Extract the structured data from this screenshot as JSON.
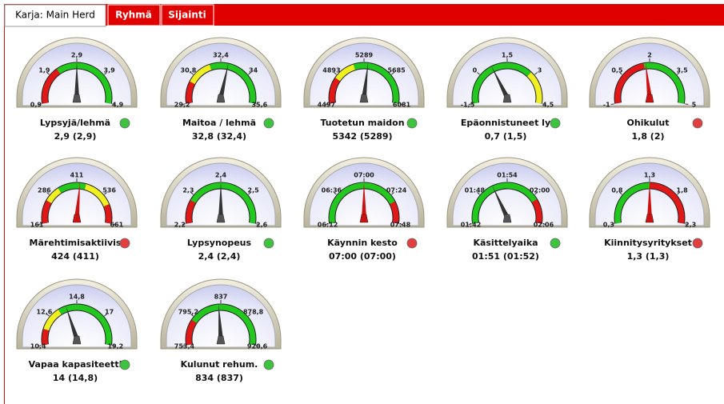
{
  "tabs": [
    "Karja: Main Herd",
    "Ryhmä",
    "Sijainti"
  ],
  "gauges": [
    {
      "name": "Lypsyjä/lehmä",
      "reading": "2,9 (2,9)",
      "value": 2.9,
      "needle_color": "#333333",
      "status_color": "#3ec33e",
      "ticks": [
        {
          "value": 0.9,
          "label": "0,9"
        },
        {
          "value": 1.9,
          "label": "1,9"
        },
        {
          "value": 2.9,
          "label": "2,9"
        },
        {
          "value": 3.9,
          "label": "3,9"
        },
        {
          "value": 4.9,
          "label": "4,9"
        }
      ],
      "zones": [
        {
          "from": 0.9,
          "to": 2.2,
          "color": "#e01818"
        },
        {
          "from": 2.2,
          "to": 4.9,
          "color": "#22c81e"
        }
      ]
    },
    {
      "name": "Maitoa / lehmä",
      "reading": "32,8 (32,4)",
      "value": 32.8,
      "needle_color": "#333333",
      "status_color": "#3ec33e",
      "ticks": [
        {
          "value": 29.2,
          "label": "29,2"
        },
        {
          "value": 30.8,
          "label": "30,8"
        },
        {
          "value": 32.4,
          "label": "32,4"
        },
        34,
        {
          "value": 35.6,
          "label": "35,6"
        }
      ],
      "zones": [
        {
          "from": 29.2,
          "to": 30.4,
          "color": "#e01818"
        },
        {
          "from": 30.4,
          "to": 31.8,
          "color": "#f0f020"
        },
        {
          "from": 31.8,
          "to": 35.6,
          "color": "#22c81e"
        }
      ]
    },
    {
      "name": "Tuotetun maidon",
      "reading": "5342 (5289)",
      "value": 5342,
      "needle_color": "#333333",
      "status_color": "#3ec33e",
      "ticks": [
        4497,
        4893,
        5289,
        5685,
        6081
      ],
      "zones": [
        {
          "from": 4497,
          "to": 4850,
          "color": "#e01818"
        },
        {
          "from": 4850,
          "to": 5150,
          "color": "#f0f020"
        },
        {
          "from": 5150,
          "to": 6081,
          "color": "#22c81e"
        }
      ]
    },
    {
      "name": "Epäonnistuneet ly",
      "reading": "0,7 (1,5)",
      "value": 0.7,
      "needle_color": "#333333",
      "status_color": "#3ec33e",
      "ticks": [
        {
          "value": -1.5,
          "label": "-1,5"
        },
        0,
        {
          "value": 1.5,
          "label": "1,5"
        },
        3,
        {
          "value": 4.5,
          "label": "4,5"
        }
      ],
      "zones": [
        {
          "from": -1.5,
          "to": 2.8,
          "color": "#22c81e"
        },
        {
          "from": 2.8,
          "to": 4.5,
          "color": "#f0f020"
        }
      ]
    },
    {
      "name": "Ohikulut",
      "reading": "1,8 (2)",
      "value": 1.8,
      "needle_color": "#cc1111",
      "status_color": "#e04040",
      "ticks": [
        -1,
        {
          "value": 0.5,
          "label": "0,5"
        },
        2,
        {
          "value": 3.5,
          "label": "3,5"
        },
        5
      ],
      "zones": [
        {
          "from": -1,
          "to": 1.7,
          "color": "#e01818"
        },
        {
          "from": 1.7,
          "to": 5,
          "color": "#22c81e"
        }
      ]
    },
    {
      "name": "Märehtimisaktiivis",
      "reading": "424 (411)",
      "value": 424,
      "needle_color": "#cc1111",
      "status_color": "#e04040",
      "ticks": [
        161,
        286,
        411,
        536,
        661
      ],
      "zones": [
        {
          "from": 161,
          "to": 260,
          "color": "#e01818"
        },
        {
          "from": 260,
          "to": 330,
          "color": "#f0f020"
        },
        {
          "from": 330,
          "to": 450,
          "color": "#22c81e"
        },
        {
          "from": 450,
          "to": 580,
          "color": "#f0f020"
        },
        {
          "from": 580,
          "to": 661,
          "color": "#e01818"
        }
      ]
    },
    {
      "name": "Lypsynopeus",
      "reading": "2,4 (2,4)",
      "value": 2.4,
      "needle_color": "#333333",
      "status_color": "#3ec33e",
      "ticks": [
        {
          "value": 2.2,
          "label": "2,2"
        },
        {
          "value": 2.3,
          "label": "2,3"
        },
        {
          "value": 2.4,
          "label": "2,4"
        },
        {
          "value": 2.5,
          "label": "2,5"
        },
        {
          "value": 2.6,
          "label": "2,6"
        }
      ],
      "zones": [
        {
          "from": 2.2,
          "to": 2.28,
          "color": "#e01818"
        },
        {
          "from": 2.28,
          "to": 2.6,
          "color": "#22c81e"
        }
      ]
    },
    {
      "name": "Käynnin kesto",
      "reading": "07:00 (07:00)",
      "value": 420,
      "needle_color": "#cc1111",
      "status_color": "#e04040",
      "ticks": [
        {
          "value": 372,
          "label": "06:12"
        },
        {
          "value": 396,
          "label": "06:36"
        },
        {
          "value": 420,
          "label": "07:00"
        },
        {
          "value": 444,
          "label": "07:24"
        },
        {
          "value": 468,
          "label": "07:48"
        }
      ],
      "zones": [
        {
          "from": 372,
          "to": 450,
          "color": "#22c81e"
        },
        {
          "from": 450,
          "to": 468,
          "color": "#e01818"
        }
      ]
    },
    {
      "name": "Käsittelyaika",
      "reading": "01:51 (01:52)",
      "value": 111,
      "needle_color": "#333333",
      "status_color": "#3ec33e",
      "ticks": [
        {
          "value": 102,
          "label": "01:42"
        },
        {
          "value": 108,
          "label": "01:48"
        },
        {
          "value": 114,
          "label": "01:54"
        },
        {
          "value": 120,
          "label": "02:00"
        },
        {
          "value": 126,
          "label": "02:06"
        }
      ],
      "zones": [
        {
          "from": 102,
          "to": 121,
          "color": "#22c81e"
        },
        {
          "from": 121,
          "to": 126,
          "color": "#e01818"
        }
      ]
    },
    {
      "name": "Kiinnitysyritykset",
      "reading": "1,3 (1,3)",
      "value": 1.3,
      "needle_color": "#cc1111",
      "status_color": "#e04040",
      "ticks": [
        {
          "value": 0.3,
          "label": "0,3"
        },
        {
          "value": 0.8,
          "label": "0,8"
        },
        {
          "value": 1.3,
          "label": "1,3"
        },
        {
          "value": 1.8,
          "label": "1,8"
        },
        {
          "value": 2.3,
          "label": "2,3"
        }
      ],
      "zones": [
        {
          "from": 0.3,
          "to": 1.3,
          "color": "#22c81e"
        },
        {
          "from": 1.3,
          "to": 2.3,
          "color": "#e01818"
        }
      ]
    },
    {
      "name": "Vapaa kapasiteetti",
      "reading": "14 (14,8)",
      "value": 14,
      "needle_color": "#333333",
      "status_color": "#3ec33e",
      "ticks": [
        {
          "value": 10.4,
          "label": "10,4"
        },
        {
          "value": 12.6,
          "label": "12,6"
        },
        {
          "value": 14.8,
          "label": "14,8"
        },
        17,
        {
          "value": 19.2,
          "label": "19,2"
        }
      ],
      "zones": [
        {
          "from": 10.4,
          "to": 11.6,
          "color": "#e01818"
        },
        {
          "from": 11.6,
          "to": 13.4,
          "color": "#f0f020"
        },
        {
          "from": 13.4,
          "to": 19.2,
          "color": "#22c81e"
        }
      ]
    },
    {
      "name": "Kulunut rehum.",
      "reading": "834 (837)",
      "value": 834,
      "needle_color": "#333333",
      "status_color": "#3ec33e",
      "ticks": [
        {
          "value": 753.4,
          "label": "753,4"
        },
        {
          "value": 795.2,
          "label": "795,2"
        },
        837,
        {
          "value": 878.8,
          "label": "878,8"
        },
        {
          "value": 920.6,
          "label": "920,6"
        }
      ],
      "zones": [
        {
          "from": 753.4,
          "to": 790,
          "color": "#e01818"
        },
        {
          "from": 790,
          "to": 920.6,
          "color": "#22c81e"
        }
      ]
    }
  ]
}
